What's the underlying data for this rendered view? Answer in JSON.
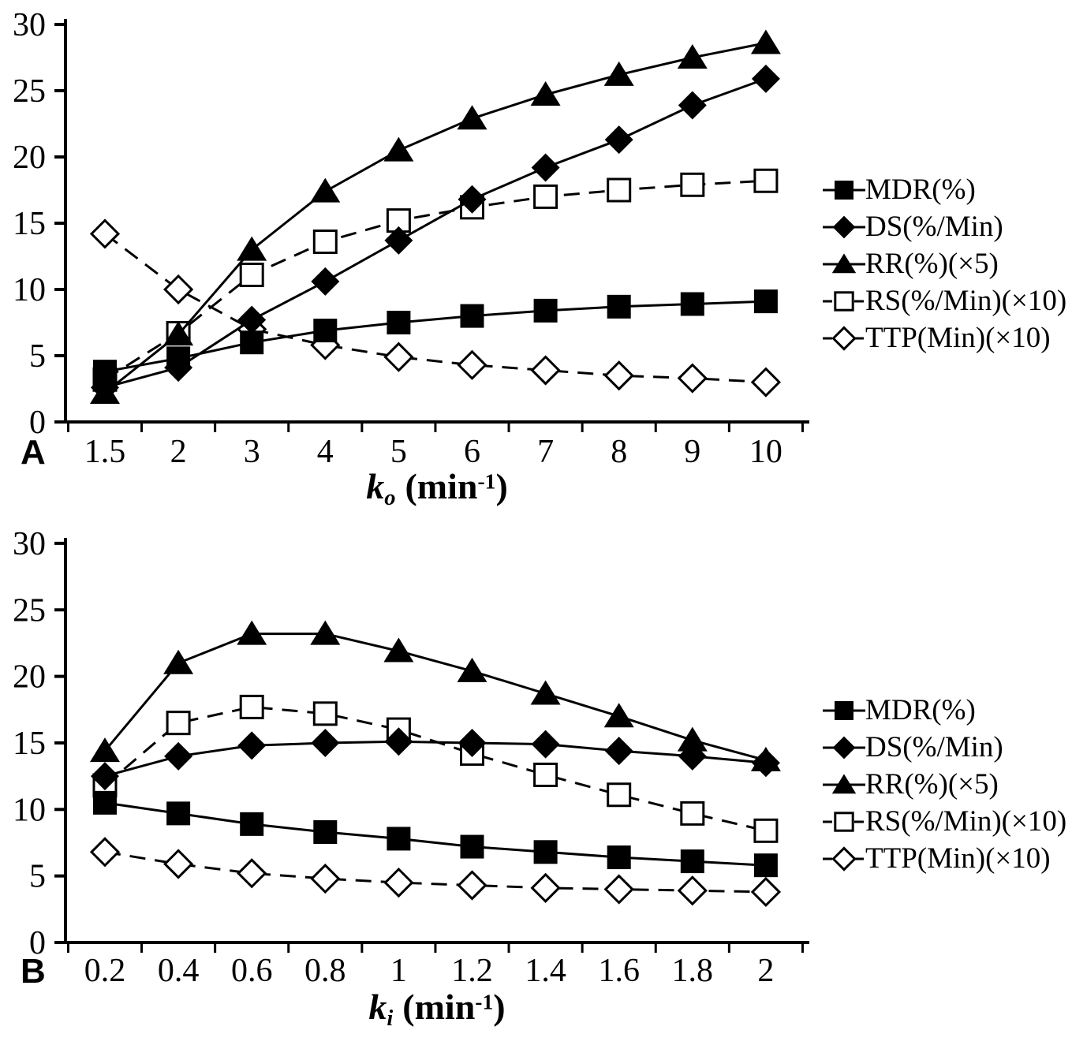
{
  "figure": {
    "background": "#ffffff",
    "ink": "#000000",
    "description": "Two-panel line chart, panels A and B, five series each"
  },
  "legend": {
    "items": [
      {
        "label": "MDR(%)",
        "marker": "filled-square",
        "line": "solid"
      },
      {
        "label": "DS(%/Min)",
        "marker": "filled-diamond",
        "line": "solid"
      },
      {
        "label": "RR(%)(×5)",
        "marker": "filled-triangle",
        "line": "solid"
      },
      {
        "label": "RS(%/Min)(×10)",
        "marker": "open-square",
        "line": "dashed"
      },
      {
        "label": "TTP(Min)(×10)",
        "marker": "open-diamond",
        "line": "dashed"
      }
    ]
  },
  "chart_data": [
    {
      "type": "line",
      "panel_label": "A",
      "xlabel_parts": {
        "var": "k",
        "sub": "o",
        "unit_open": "(min",
        "sup": "-1",
        "unit_close": ")"
      },
      "x_tick_labels": [
        "1.5",
        "2",
        "3",
        "4",
        "5",
        "6",
        "7",
        "8",
        "9",
        "10"
      ],
      "y_ticks": [
        0,
        5,
        10,
        15,
        20,
        25,
        30
      ],
      "ylim": [
        0,
        30
      ],
      "grid": false,
      "legend_position": "right",
      "series": [
        {
          "name": "MDR(%)",
          "marker": "filled-square",
          "line": "solid",
          "values": [
            3.8,
            4.8,
            6.0,
            6.9,
            7.5,
            8.0,
            8.4,
            8.7,
            8.9,
            9.1
          ]
        },
        {
          "name": "DS(%/Min)",
          "marker": "filled-diamond",
          "line": "solid",
          "values": [
            2.6,
            4.1,
            7.7,
            10.6,
            13.7,
            16.8,
            19.2,
            21.3,
            23.9,
            25.9
          ]
        },
        {
          "name": "RR(%)(×5)",
          "marker": "filled-triangle",
          "line": "solid",
          "values": [
            2.2,
            6.6,
            13.0,
            17.4,
            20.5,
            22.9,
            24.7,
            26.2,
            27.5,
            28.6
          ]
        },
        {
          "name": "RS(%/Min)(×10)",
          "marker": "open-square",
          "line": "dashed",
          "values": [
            3.2,
            6.7,
            11.1,
            13.6,
            15.2,
            16.2,
            17.0,
            17.5,
            17.9,
            18.2
          ]
        },
        {
          "name": "TTP(Min)(×10)",
          "marker": "open-diamond",
          "line": "dashed",
          "values": [
            14.2,
            10.0,
            7.0,
            5.8,
            4.9,
            4.3,
            3.9,
            3.5,
            3.3,
            3.0
          ]
        }
      ]
    },
    {
      "type": "line",
      "panel_label": "B",
      "xlabel_parts": {
        "var": "k",
        "sub": "i",
        "unit_open": "(min",
        "sup": "-1",
        "unit_close": ")"
      },
      "x_tick_labels": [
        "0.2",
        "0.4",
        "0.6",
        "0.8",
        "1",
        "1.2",
        "1.4",
        "1.6",
        "1.8",
        "2"
      ],
      "y_ticks": [
        0,
        5,
        10,
        15,
        20,
        25,
        30
      ],
      "ylim": [
        0,
        30
      ],
      "grid": false,
      "legend_position": "right",
      "series": [
        {
          "name": "MDR(%)",
          "marker": "filled-square",
          "line": "solid",
          "values": [
            10.5,
            9.7,
            8.9,
            8.3,
            7.8,
            7.2,
            6.8,
            6.4,
            6.1,
            5.8
          ]
        },
        {
          "name": "DS(%/Min)",
          "marker": "filled-diamond",
          "line": "solid",
          "values": [
            12.5,
            14.0,
            14.8,
            15.0,
            15.1,
            15.0,
            14.9,
            14.4,
            14.0,
            13.5
          ]
        },
        {
          "name": "RR(%)(×5)",
          "marker": "filled-triangle",
          "line": "solid",
          "values": [
            14.4,
            21.0,
            23.2,
            23.2,
            21.9,
            20.4,
            18.7,
            17.0,
            15.2,
            13.7
          ]
        },
        {
          "name": "RS(%/Min)(×10)",
          "marker": "open-square",
          "line": "dashed",
          "values": [
            11.8,
            16.5,
            17.7,
            17.2,
            16.0,
            14.2,
            12.6,
            11.1,
            9.7,
            8.4
          ]
        },
        {
          "name": "TTP(Min)(×10)",
          "marker": "open-diamond",
          "line": "dashed",
          "values": [
            6.8,
            5.9,
            5.2,
            4.8,
            4.5,
            4.3,
            4.1,
            4.0,
            3.9,
            3.8
          ]
        }
      ]
    }
  ]
}
